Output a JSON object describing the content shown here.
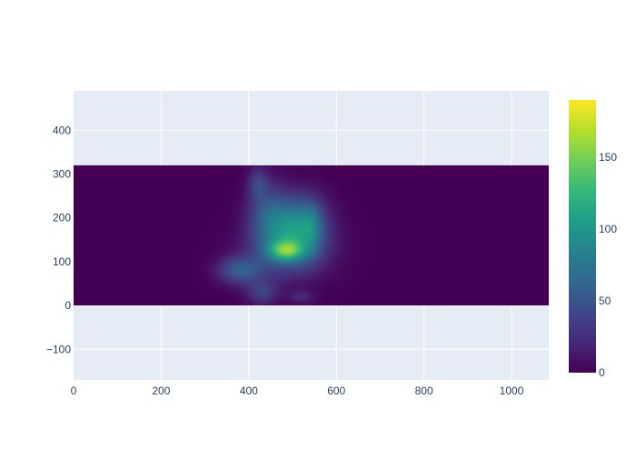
{
  "chart_data": {
    "type": "heatmap",
    "title": "",
    "xlabel": "",
    "ylabel": "",
    "xlim": [
      0,
      1085
    ],
    "ylim": [
      -170,
      490
    ],
    "x_ticks": [
      0,
      200,
      400,
      600,
      800,
      1000
    ],
    "y_ticks": [
      -100,
      0,
      100,
      200,
      300,
      400
    ],
    "grid": true,
    "heatmap_extent": {
      "x": [
        0,
        1085
      ],
      "y": [
        0,
        320
      ]
    },
    "blobs": [
      {
        "x": 485,
        "y": 125,
        "sx": 28,
        "sy": 16,
        "value": 80
      },
      {
        "x": 490,
        "y": 130,
        "sx": 60,
        "sy": 45,
        "value": 60
      },
      {
        "x": 510,
        "y": 190,
        "sx": 45,
        "sy": 45,
        "value": 75
      },
      {
        "x": 440,
        "y": 215,
        "sx": 30,
        "sy": 50,
        "value": 40
      },
      {
        "x": 420,
        "y": 280,
        "sx": 15,
        "sy": 25,
        "value": 30
      },
      {
        "x": 380,
        "y": 80,
        "sx": 35,
        "sy": 22,
        "value": 55
      },
      {
        "x": 430,
        "y": 30,
        "sx": 25,
        "sy": 20,
        "value": 35
      },
      {
        "x": 520,
        "y": 20,
        "sx": 20,
        "sy": 10,
        "value": 22
      },
      {
        "x": 545,
        "y": 180,
        "sx": 15,
        "sy": 40,
        "value": 25
      }
    ],
    "colorscale": {
      "name": "Viridis",
      "zmin": 0,
      "zmax": 190,
      "ticks": [
        0,
        50,
        100,
        150
      ],
      "stops": [
        "#440154",
        "#482878",
        "#3e4989",
        "#31688e",
        "#26828e",
        "#1f9e89",
        "#35b779",
        "#6ece58",
        "#b5de2b",
        "#fde725"
      ]
    },
    "colors": {
      "plot_bg": "#e5ecf6",
      "grid": "#ffffff",
      "text": "#2a3f5f"
    }
  }
}
